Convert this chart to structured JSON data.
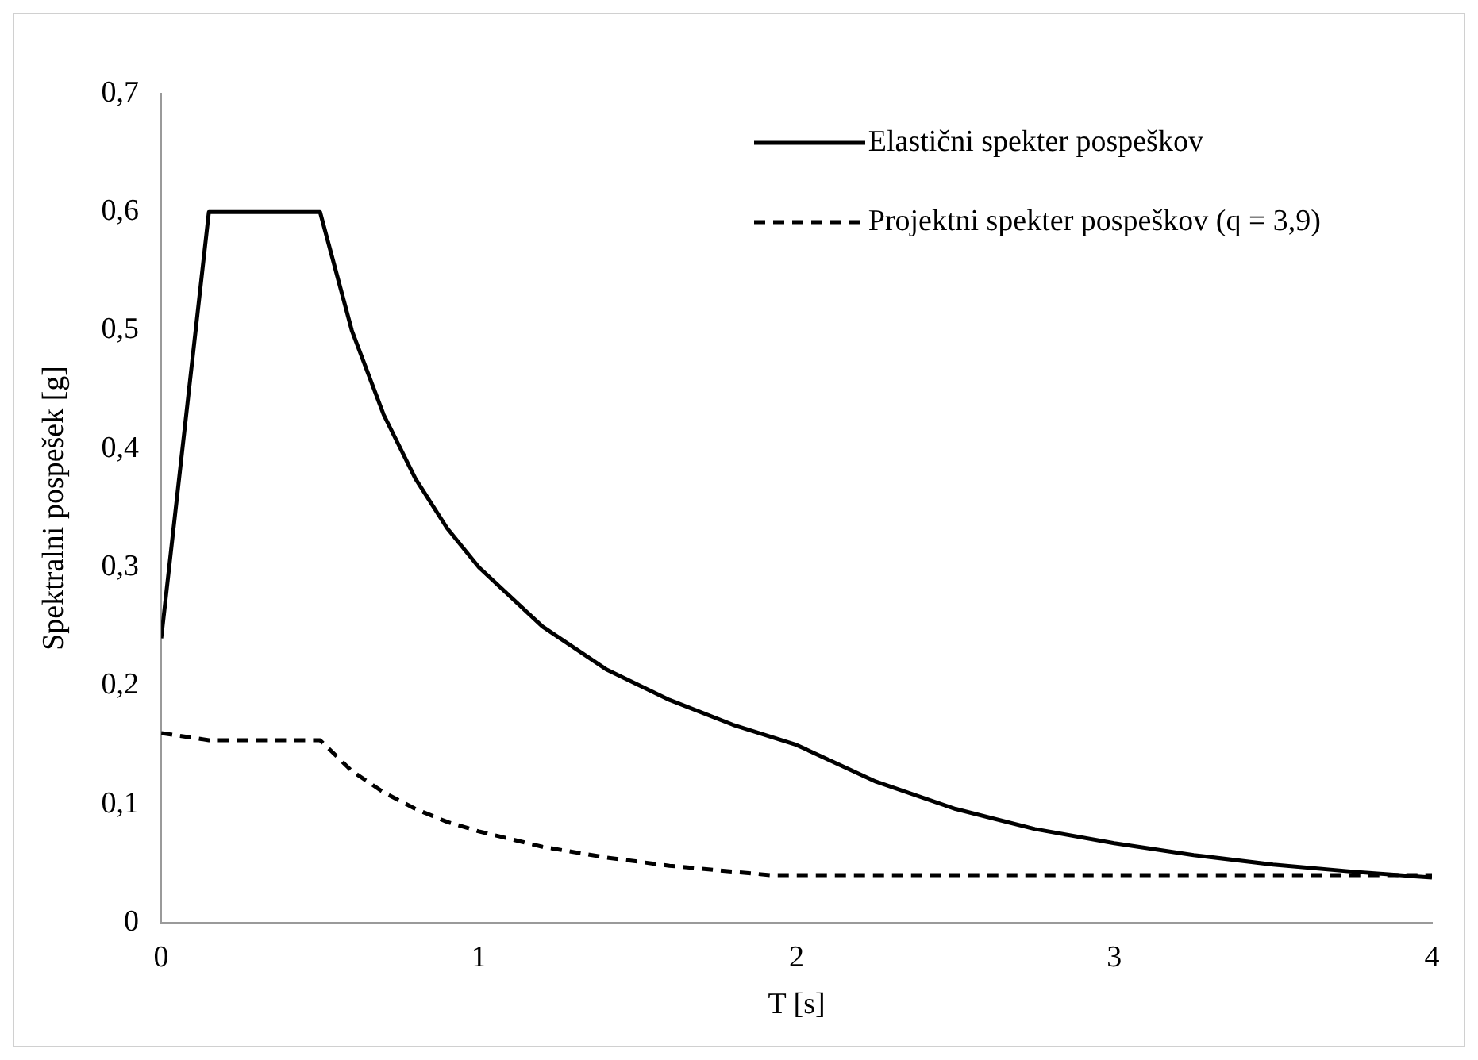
{
  "chart_data": {
    "type": "line",
    "xlabel": "T [s]",
    "ylabel": "Spektralni pospešek [g]",
    "xlim": [
      0,
      4
    ],
    "xticks": [
      0,
      1,
      2,
      3,
      4
    ],
    "ylim": [
      0,
      0.7
    ],
    "yticks": [
      {
        "value": 0,
        "label": "0"
      },
      {
        "value": 0.1,
        "label": "0,1"
      },
      {
        "value": 0.2,
        "label": "0,2"
      },
      {
        "value": 0.3,
        "label": "0,3"
      },
      {
        "value": 0.4,
        "label": "0,4"
      },
      {
        "value": 0.5,
        "label": "0,5"
      },
      {
        "value": 0.6,
        "label": "0,6"
      },
      {
        "value": 0.7,
        "label": "0,7"
      }
    ],
    "grid": false,
    "legend": "top right",
    "marker": "none",
    "series": [
      {
        "name": "Elastični spekter pospeškov",
        "color": "#000000",
        "line_style": "solid",
        "x": [
          0,
          0.15,
          0.5,
          0.6,
          0.7,
          0.8,
          0.9,
          1,
          1.2,
          1.4,
          1.6,
          1.8,
          2,
          2.25,
          2.5,
          2.75,
          3,
          3.25,
          3.5,
          3.75,
          4
        ],
        "values": [
          0.24,
          0.6,
          0.6,
          0.5,
          0.429,
          0.375,
          0.333,
          0.3,
          0.25,
          0.214,
          0.188,
          0.167,
          0.15,
          0.119,
          0.096,
          0.079,
          0.067,
          0.057,
          0.049,
          0.043,
          0.038
        ]
      },
      {
        "name": "Projektni spekter pospeškov (q = 3,9)",
        "color": "#000000",
        "line_style": "dashed",
        "x": [
          0,
          0.15,
          0.5,
          0.6,
          0.7,
          0.8,
          0.9,
          1,
          1.2,
          1.4,
          1.6,
          1.8,
          1.92,
          2.5,
          3,
          3.5,
          4
        ],
        "values": [
          0.16,
          0.154,
          0.154,
          0.128,
          0.11,
          0.096,
          0.085,
          0.077,
          0.064,
          0.055,
          0.048,
          0.043,
          0.04,
          0.04,
          0.04,
          0.04,
          0.04
        ]
      }
    ]
  }
}
